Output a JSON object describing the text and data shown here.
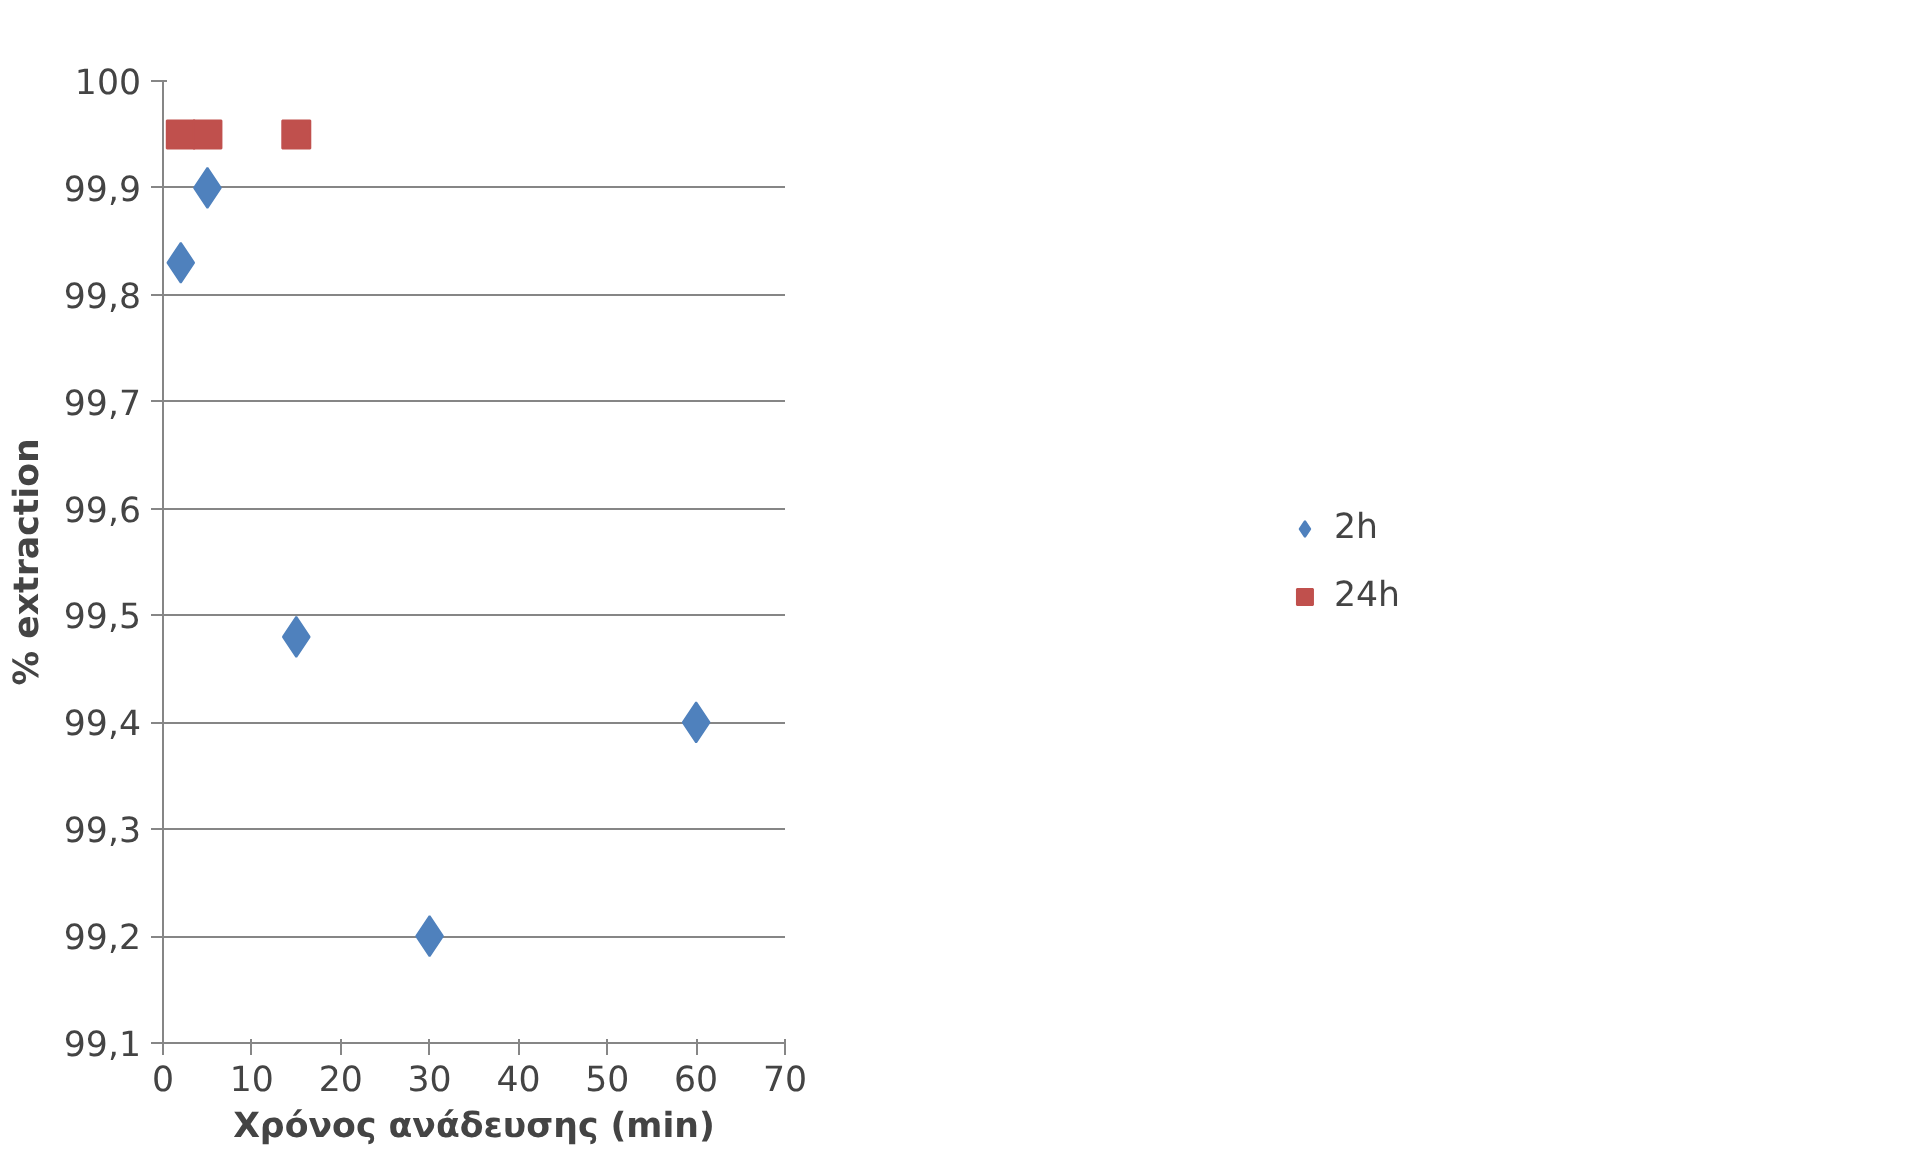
{
  "chart_data": {
    "type": "scatter",
    "xlabel": "Χρόνος ανάδευσης (min)",
    "ylabel": "% extraction",
    "xlim": [
      0,
      70
    ],
    "xticks": [
      0,
      10,
      20,
      30,
      40,
      50,
      60,
      70
    ],
    "ylim": [
      99.1,
      100
    ],
    "yticks": [
      {
        "value": 99.1,
        "label": "99,1"
      },
      {
        "value": 99.2,
        "label": "99,2"
      },
      {
        "value": 99.3,
        "label": "99,3"
      },
      {
        "value": 99.4,
        "label": "99,4"
      },
      {
        "value": 99.5,
        "label": "99,5"
      },
      {
        "value": 99.6,
        "label": "99,6"
      },
      {
        "value": 99.7,
        "label": "99,7"
      },
      {
        "value": 99.8,
        "label": "99,8"
      },
      {
        "value": 99.9,
        "label": "99,9"
      },
      100
    ],
    "grid": "y",
    "legend": "right",
    "series": [
      {
        "name": "2h",
        "color": "#4f81bd",
        "marker": "diamond",
        "x": [
          2,
          5,
          15,
          30,
          60
        ],
        "values": [
          99.83,
          99.9,
          99.48,
          99.2,
          99.4
        ]
      },
      {
        "name": "24h",
        "color": "#c0504d",
        "marker": "square",
        "x": [
          2,
          5,
          15
        ],
        "values": [
          99.95,
          99.95,
          99.95
        ]
      }
    ]
  }
}
